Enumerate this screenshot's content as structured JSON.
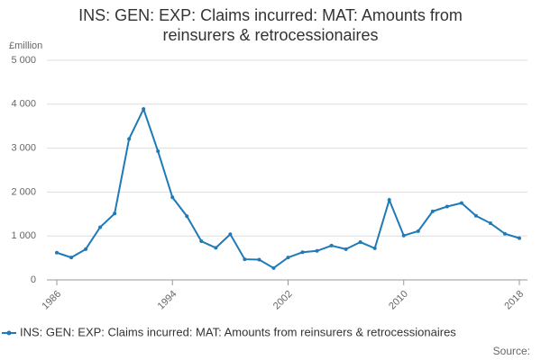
{
  "chart_data": {
    "type": "line",
    "title": "INS: GEN: EXP: Claims incurred: MAT: Amounts from reinsurers & retrocessionaires",
    "y_unit": "£million",
    "source": "Source:",
    "x": [
      1986,
      1987,
      1988,
      1989,
      1990,
      1991,
      1992,
      1993,
      1994,
      1995,
      1996,
      1997,
      1998,
      1999,
      2000,
      2001,
      2002,
      2003,
      2004,
      2005,
      2006,
      2007,
      2008,
      2009,
      2010,
      2011,
      2012,
      2013,
      2014,
      2015,
      2016,
      2017,
      2018
    ],
    "series": [
      {
        "name": "INS: GEN: EXP: Claims incurred: MAT: Amounts from reinsurers & retrocessionaires",
        "color": "#1f7ab5",
        "values": [
          620,
          510,
          700,
          1200,
          1510,
          3210,
          3890,
          2930,
          1880,
          1450,
          880,
          730,
          1040,
          470,
          460,
          270,
          510,
          630,
          660,
          780,
          700,
          860,
          720,
          1820,
          1010,
          1110,
          1560,
          1670,
          1750,
          1460,
          1290,
          1050,
          950
        ]
      }
    ],
    "xlim": [
      1986,
      2018
    ],
    "xticks": [
      1986,
      1994,
      2002,
      2010,
      2018
    ],
    "ylim": [
      0,
      5000
    ],
    "yticks": [
      0,
      {
        "value": 1000,
        "label": "1 000"
      },
      {
        "value": 2000,
        "label": "2 000"
      },
      {
        "value": 3000,
        "label": "3 000"
      },
      {
        "value": 4000,
        "label": "4 000"
      },
      {
        "value": 5000,
        "label": "5 000"
      }
    ],
    "grid": true,
    "legend": "bottom"
  }
}
